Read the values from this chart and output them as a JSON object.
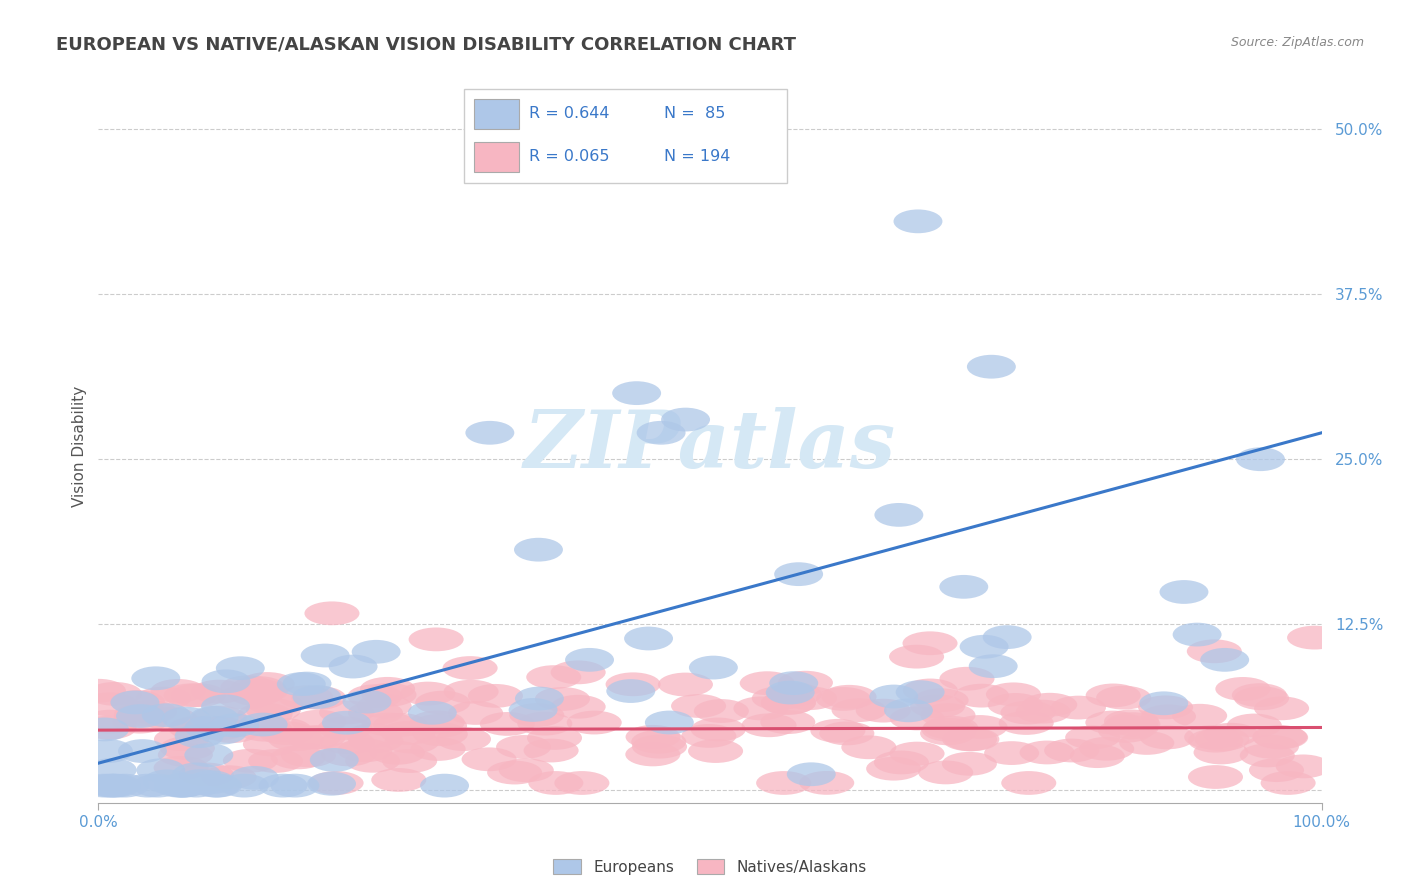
{
  "title": "EUROPEAN VS NATIVE/ALASKAN VISION DISABILITY CORRELATION CHART",
  "source": "Source: ZipAtlas.com",
  "ylabel": "Vision Disability",
  "xlim": [
    0,
    100
  ],
  "ylim": [
    -1,
    53
  ],
  "yticks": [
    0,
    12.5,
    25.0,
    37.5,
    50.0
  ],
  "yticklabels": [
    "",
    "12.5%",
    "25.0%",
    "37.5%",
    "50.0%"
  ],
  "xticks": [
    0,
    100
  ],
  "xticklabels": [
    "0.0%",
    "100.0%"
  ],
  "blue_color": "#aec7e8",
  "pink_color": "#f7b6c2",
  "blue_line_color": "#3a78c9",
  "pink_line_color": "#d94f70",
  "grid_color": "#cccccc",
  "title_color": "#444444",
  "source_color": "#888888",
  "tick_label_color": "#5b9bd5",
  "watermark_color": "#d5e8f5",
  "legend_text_color": "#3a78c9",
  "legend_R1": "R = 0.644",
  "legend_N1": "N =  85",
  "legend_R2": "R = 0.065",
  "legend_N2": "N = 194",
  "legend_label1": "Europeans",
  "legend_label2": "Natives/Alaskans"
}
